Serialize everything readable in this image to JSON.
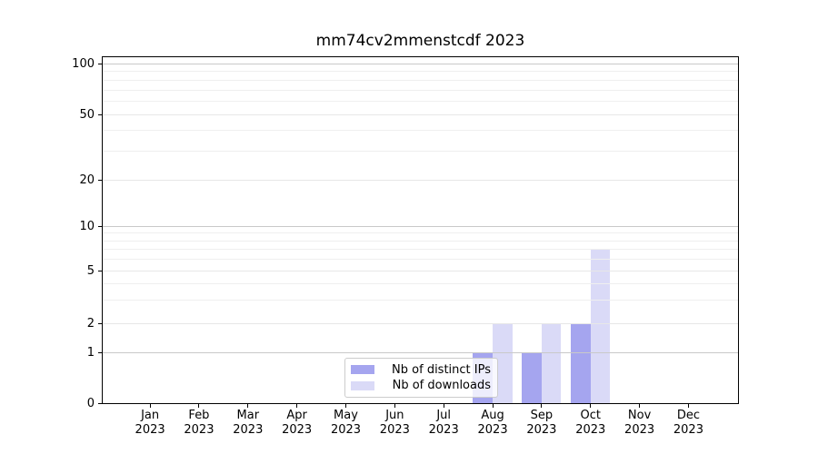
{
  "chart_data": {
    "type": "bar",
    "title": "mm74cv2mmenstcdf 2023",
    "categories": [
      "Jan 2023",
      "Feb 2023",
      "Mar 2023",
      "Apr 2023",
      "May 2023",
      "Jun 2023",
      "Jul 2023",
      "Aug 2023",
      "Sep 2023",
      "Oct 2023",
      "Nov 2023",
      "Dec 2023"
    ],
    "month_labels": [
      "Jan",
      "Feb",
      "Mar",
      "Apr",
      "May",
      "Jun",
      "Jul",
      "Aug",
      "Sep",
      "Oct",
      "Nov",
      "Dec"
    ],
    "year_label": "2023",
    "series": [
      {
        "name": "Nb of distinct IPs",
        "color": "#a5a5ef",
        "values": [
          0,
          0,
          0,
          0,
          0,
          0,
          0,
          1,
          1,
          2,
          0,
          0
        ]
      },
      {
        "name": "Nb of downloads",
        "color": "#dadaf7",
        "values": [
          0,
          0,
          0,
          0,
          0,
          0,
          0,
          2,
          2,
          7,
          0,
          0
        ]
      }
    ],
    "xlabel": "",
    "ylabel": "",
    "y_axis": {
      "scale": "symlog",
      "ticks": [
        0,
        1,
        2,
        5,
        10,
        20,
        50,
        100
      ],
      "tick_labels": [
        "0",
        "1",
        "2",
        "5",
        "10",
        "20",
        "50",
        "100"
      ],
      "emphasized_gridlines": [
        1,
        10,
        100
      ],
      "minor_gridlines": [
        3,
        4,
        6,
        7,
        8,
        9,
        30,
        40,
        60,
        70,
        80,
        90
      ],
      "range": [
        0,
        120
      ]
    },
    "grid": true,
    "legend": {
      "position": "lower center",
      "entries": [
        "Nb of distinct IPs",
        "Nb of downloads"
      ]
    }
  },
  "colors": {
    "background": "#ffffff",
    "axis": "#000000",
    "text": "#000000",
    "major_grid": "#c9c9c9",
    "mid_grid": "#e7e7e7",
    "minor_grid": "#efefef",
    "legend_border": "#cccccc"
  }
}
